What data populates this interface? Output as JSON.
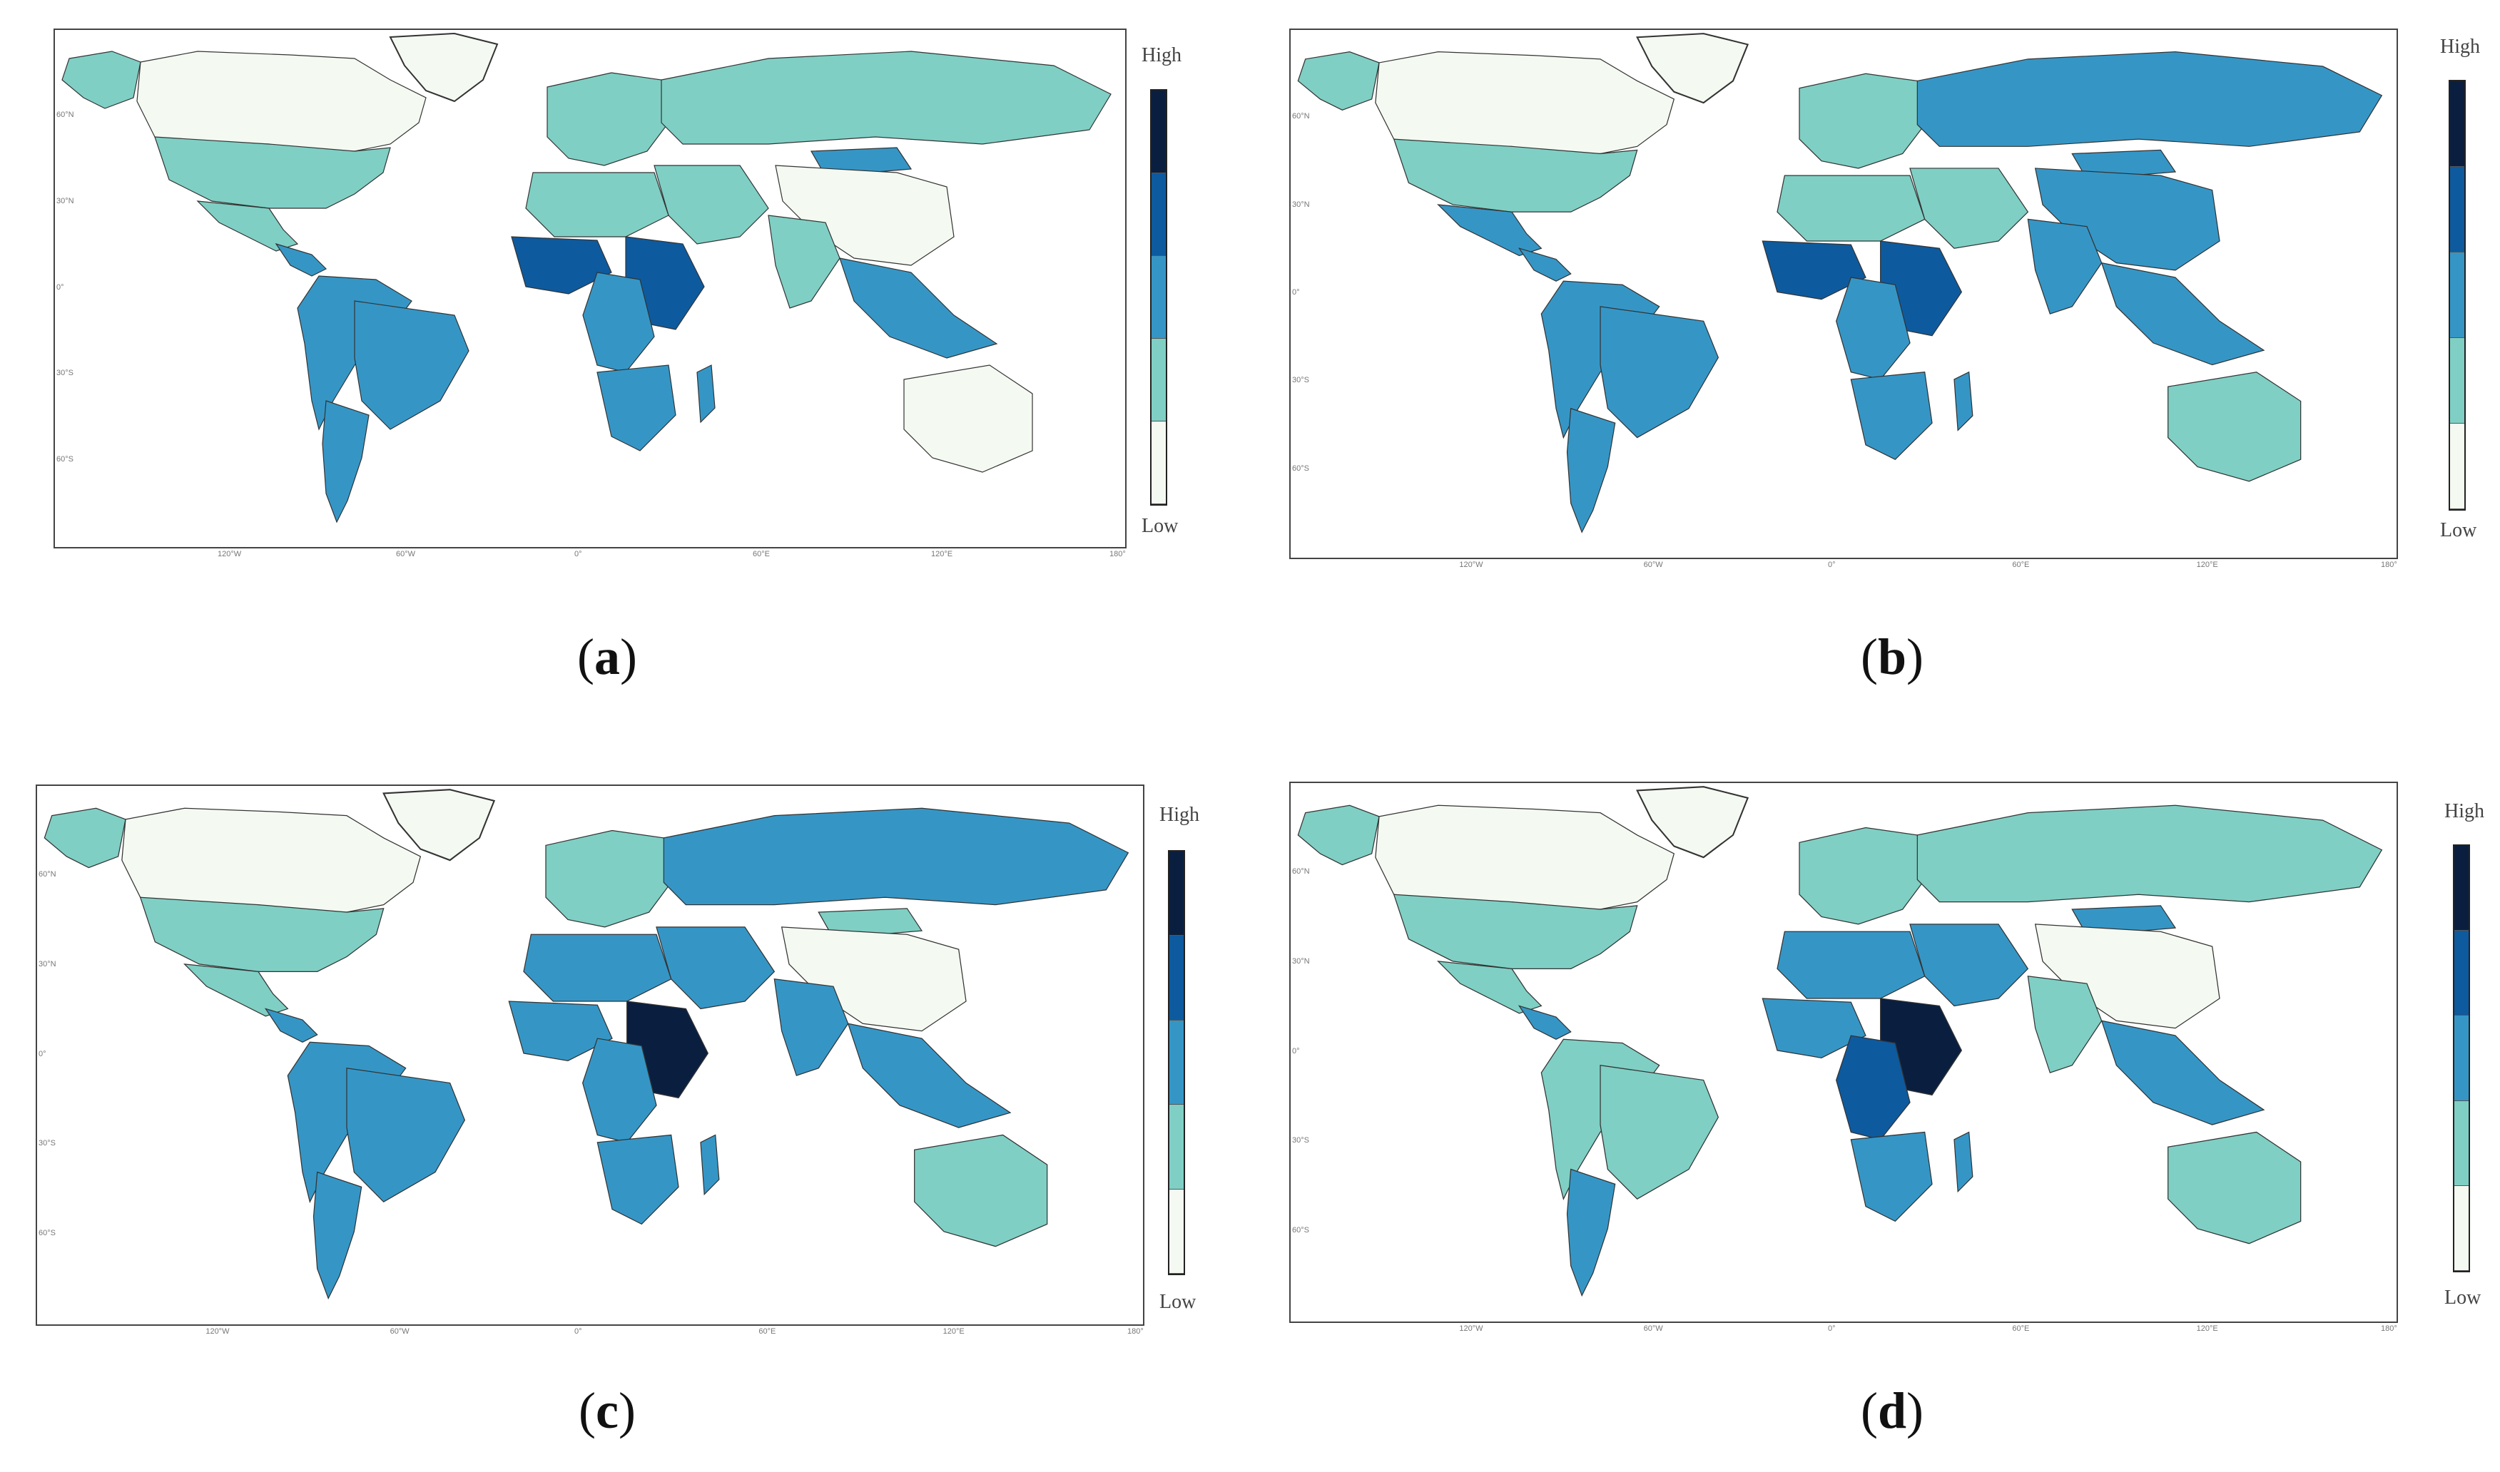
{
  "legend": {
    "high_label": "High",
    "low_label": "Low",
    "colors": [
      "#f4faf2",
      "#7fcfc4",
      "#3596c6",
      "#0e5a9e",
      "#0a1f3f"
    ]
  },
  "axes": {
    "x_ticks": [
      "120°W",
      "60°W",
      "0°",
      "60°E",
      "120°E",
      "180°"
    ],
    "y_ticks": [
      "60°N",
      "30°N",
      "0°",
      "30°S",
      "60°S"
    ]
  },
  "panels": [
    {
      "caption": "a",
      "palette_note": "panel-a"
    },
    {
      "caption": "b",
      "palette_note": "panel-b"
    },
    {
      "caption": "c",
      "palette_note": "panel-c"
    },
    {
      "caption": "d",
      "palette_note": "panel-d"
    }
  ],
  "regions": {
    "a": {
      "canada": 0,
      "usa": 1,
      "alaska": 1,
      "greenland_outline": 0,
      "mexico": 1,
      "central_america": 2,
      "south_america": 2,
      "brazil": 2,
      "argentina": 2,
      "europe": 1,
      "russia": 1,
      "china": 0,
      "india": 1,
      "middle_east": 1,
      "north_africa": 1,
      "west_africa": 3,
      "central_africa": 2,
      "east_africa": 3,
      "southern_africa": 2,
      "madagascar": 2,
      "australia": 0,
      "southeast_asia": 2,
      "mongolia": 2
    },
    "b": {
      "canada": 0,
      "usa": 1,
      "alaska": 1,
      "greenland_outline": 0,
      "mexico": 2,
      "central_america": 2,
      "south_america": 2,
      "brazil": 2,
      "argentina": 2,
      "europe": 1,
      "russia": 2,
      "china": 2,
      "india": 2,
      "middle_east": 1,
      "north_africa": 1,
      "west_africa": 3,
      "central_africa": 2,
      "east_africa": 3,
      "southern_africa": 2,
      "madagascar": 2,
      "australia": 1,
      "southeast_asia": 2,
      "mongolia": 2
    },
    "c": {
      "canada": 0,
      "usa": 1,
      "alaska": 1,
      "greenland_outline": 0,
      "mexico": 1,
      "central_america": 2,
      "south_america": 2,
      "brazil": 2,
      "argentina": 2,
      "europe": 1,
      "russia": 2,
      "china": 0,
      "india": 2,
      "middle_east": 2,
      "north_africa": 2,
      "west_africa": 2,
      "central_africa": 2,
      "east_africa": 4,
      "southern_africa": 2,
      "madagascar": 2,
      "australia": 1,
      "southeast_asia": 2,
      "mongolia": 1
    },
    "d": {
      "canada": 0,
      "usa": 1,
      "alaska": 1,
      "greenland_outline": 0,
      "mexico": 1,
      "central_america": 2,
      "south_america": 1,
      "brazil": 1,
      "argentina": 2,
      "europe": 1,
      "russia": 1,
      "china": 0,
      "india": 1,
      "middle_east": 2,
      "north_africa": 2,
      "west_africa": 2,
      "central_africa": 3,
      "east_africa": 4,
      "southern_africa": 2,
      "madagascar": 2,
      "australia": 1,
      "southeast_asia": 2,
      "mongolia": 2
    }
  }
}
